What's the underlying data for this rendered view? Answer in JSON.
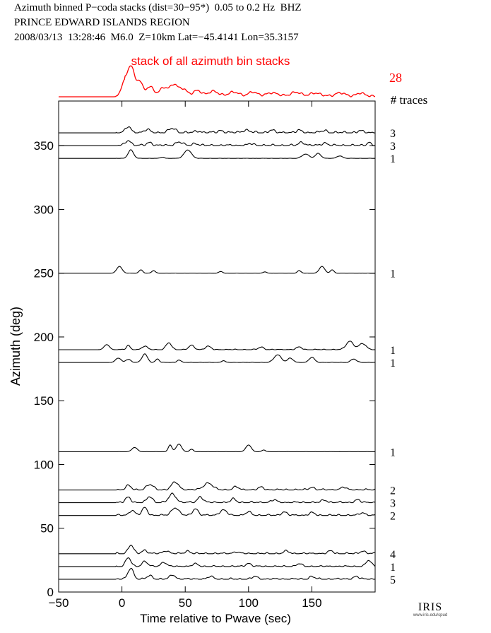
{
  "header": {
    "line1": "Azimuth binned P−coda stacks (dist=30−95*)  0.05 to 0.2 Hz  BHZ",
    "line2": "PRINCE EDWARD ISLANDS REGION",
    "line3": "2008/03/13  13:28:46  M6.0  Z=10km Lat=−45.4141 Lon=35.3157"
  },
  "colors": {
    "stack": "#ff0000",
    "trace": "#000000",
    "axis": "#000000"
  },
  "logo": {
    "main": "IRIS",
    "sub": "www.iris.edu/spud"
  },
  "chart_data": {
    "type": "line",
    "xlabel": "Time relative to Pwave (sec)",
    "ylabel": "Azimuth (deg)",
    "xlim": [
      -50,
      200
    ],
    "ylim": [
      0,
      385
    ],
    "xticks": [
      -50,
      0,
      50,
      100,
      150
    ],
    "yticks": [
      0,
      50,
      100,
      150,
      200,
      250,
      300,
      350
    ],
    "grid": false,
    "stack": {
      "label": "stack of all azimuth bin stacks",
      "count": "28",
      "count_header": "# traces",
      "bumps": [
        [
          7,
          1.0,
          4
        ],
        [
          1,
          0.4,
          3
        ],
        [
          14,
          0.45,
          3
        ],
        [
          22,
          0.25,
          4
        ],
        [
          33,
          0.25,
          4
        ],
        [
          41,
          0.35,
          4
        ],
        [
          48,
          0.22,
          4
        ],
        [
          60,
          0.15,
          4
        ],
        [
          72,
          0.12,
          5
        ],
        [
          88,
          0.1,
          5
        ],
        [
          103,
          0.12,
          4
        ],
        [
          118,
          0.1,
          5
        ],
        [
          137,
          0.12,
          5
        ],
        [
          152,
          0.1,
          5
        ],
        [
          172,
          0.1,
          5
        ],
        [
          188,
          0.1,
          4
        ]
      ],
      "noise": 0.04,
      "tail_level": 0.1
    },
    "series": [
      {
        "azimuth": 360,
        "count": "3",
        "noise": 0.14,
        "bumps": [
          [
            5,
            0.7,
            3
          ],
          [
            20,
            0.35,
            3
          ],
          [
            40,
            0.5,
            4
          ],
          [
            60,
            0.2,
            3
          ],
          [
            78,
            0.25,
            3
          ],
          [
            98,
            0.3,
            4
          ],
          [
            118,
            0.3,
            3
          ],
          [
            140,
            0.25,
            3
          ],
          [
            160,
            0.25,
            3
          ],
          [
            188,
            0.2,
            3
          ]
        ]
      },
      {
        "azimuth": 350,
        "count": "3",
        "noise": 0.12,
        "bumps": [
          [
            5,
            0.6,
            3
          ],
          [
            22,
            0.35,
            3
          ],
          [
            45,
            0.4,
            4
          ],
          [
            58,
            0.25,
            3
          ],
          [
            102,
            0.2,
            3
          ],
          [
            142,
            0.4,
            3
          ],
          [
            160,
            0.3,
            3
          ],
          [
            195,
            0.4,
            2
          ]
        ]
      },
      {
        "azimuth": 340,
        "count": "1",
        "noise": 0.02,
        "bumps": [
          [
            7,
            1.0,
            3
          ],
          [
            32,
            0.15,
            2
          ],
          [
            52,
            1.0,
            4
          ],
          [
            145,
            0.5,
            4
          ],
          [
            155,
            0.6,
            3
          ],
          [
            172,
            0.3,
            3
          ]
        ]
      },
      {
        "azimuth": 250,
        "count": "1",
        "noise": 0.01,
        "bumps": [
          [
            -2,
            0.8,
            3
          ],
          [
            15,
            0.4,
            2
          ],
          [
            25,
            0.3,
            2
          ],
          [
            78,
            0.2,
            2
          ],
          [
            113,
            0.15,
            2
          ],
          [
            140,
            0.3,
            2
          ],
          [
            158,
            0.8,
            3
          ],
          [
            166,
            0.4,
            2
          ]
        ]
      },
      {
        "azimuth": 190,
        "count": "1",
        "noise": 0.05,
        "bumps": [
          [
            -12,
            0.6,
            3
          ],
          [
            5,
            0.5,
            2
          ],
          [
            18,
            0.4,
            3
          ],
          [
            37,
            0.8,
            3
          ],
          [
            55,
            0.5,
            3
          ],
          [
            68,
            0.4,
            3
          ],
          [
            110,
            0.3,
            3
          ],
          [
            140,
            0.3,
            3
          ],
          [
            180,
            1.0,
            4
          ],
          [
            190,
            0.7,
            4
          ]
        ]
      },
      {
        "azimuth": 180,
        "count": "1",
        "noise": 0.03,
        "bumps": [
          [
            -3,
            0.5,
            3
          ],
          [
            5,
            0.35,
            3
          ],
          [
            18,
            1.0,
            3
          ],
          [
            28,
            0.4,
            2
          ],
          [
            45,
            0.3,
            2
          ],
          [
            80,
            0.2,
            2
          ],
          [
            123,
            0.9,
            4
          ],
          [
            133,
            0.5,
            3
          ],
          [
            150,
            0.6,
            3
          ],
          [
            183,
            0.4,
            3
          ]
        ]
      },
      {
        "azimuth": 110,
        "count": "1",
        "noise": 0.01,
        "bumps": [
          [
            10,
            0.5,
            3
          ],
          [
            38,
            0.8,
            2
          ],
          [
            45,
            0.9,
            3
          ],
          [
            55,
            0.3,
            2
          ],
          [
            100,
            0.8,
            3
          ],
          [
            112,
            0.2,
            2
          ]
        ]
      },
      {
        "azimuth": 80,
        "count": "2",
        "noise": 0.1,
        "bumps": [
          [
            5,
            0.5,
            3
          ],
          [
            22,
            0.6,
            4
          ],
          [
            42,
            0.9,
            4
          ],
          [
            68,
            0.8,
            5
          ],
          [
            90,
            0.35,
            3
          ],
          [
            110,
            0.3,
            3
          ],
          [
            150,
            0.3,
            3
          ],
          [
            175,
            0.3,
            3
          ]
        ]
      },
      {
        "azimuth": 70,
        "count": "3",
        "noise": 0.12,
        "bumps": [
          [
            5,
            0.6,
            3
          ],
          [
            22,
            0.7,
            3
          ],
          [
            40,
            1.0,
            4
          ],
          [
            62,
            0.7,
            3
          ],
          [
            88,
            0.4,
            3
          ],
          [
            120,
            0.3,
            3
          ],
          [
            160,
            0.3,
            3
          ],
          [
            186,
            0.3,
            3
          ]
        ]
      },
      {
        "azimuth": 60,
        "count": "2",
        "noise": 0.1,
        "bumps": [
          [
            8,
            0.6,
            3
          ],
          [
            18,
            0.9,
            3
          ],
          [
            42,
            0.9,
            4
          ],
          [
            58,
            0.8,
            3
          ],
          [
            80,
            0.6,
            4
          ],
          [
            100,
            0.4,
            3
          ],
          [
            128,
            0.4,
            3
          ],
          [
            150,
            0.3,
            3
          ],
          [
            190,
            0.3,
            3
          ]
        ]
      },
      {
        "azimuth": 30,
        "count": "4",
        "noise": 0.1,
        "bumps": [
          [
            7,
            1.0,
            3
          ],
          [
            18,
            0.4,
            3
          ],
          [
            35,
            0.35,
            3
          ],
          [
            52,
            0.3,
            3
          ],
          [
            90,
            0.2,
            3
          ],
          [
            130,
            0.3,
            3
          ],
          [
            165,
            0.3,
            3
          ],
          [
            190,
            0.3,
            3
          ]
        ]
      },
      {
        "azimuth": 20,
        "count": "1",
        "noise": 0.08,
        "bumps": [
          [
            5,
            1.0,
            3
          ],
          [
            18,
            0.6,
            3
          ],
          [
            33,
            0.5,
            3
          ],
          [
            58,
            0.3,
            3
          ],
          [
            100,
            0.35,
            3
          ],
          [
            140,
            0.3,
            3
          ],
          [
            195,
            0.7,
            3
          ]
        ]
      },
      {
        "azimuth": 10,
        "count": "5",
        "noise": 0.1,
        "bumps": [
          [
            7,
            1.3,
            3
          ],
          [
            22,
            0.4,
            3
          ],
          [
            40,
            0.5,
            3
          ],
          [
            70,
            0.3,
            3
          ],
          [
            105,
            0.3,
            3
          ],
          [
            150,
            0.3,
            3
          ],
          [
            185,
            0.3,
            3
          ]
        ]
      }
    ]
  }
}
